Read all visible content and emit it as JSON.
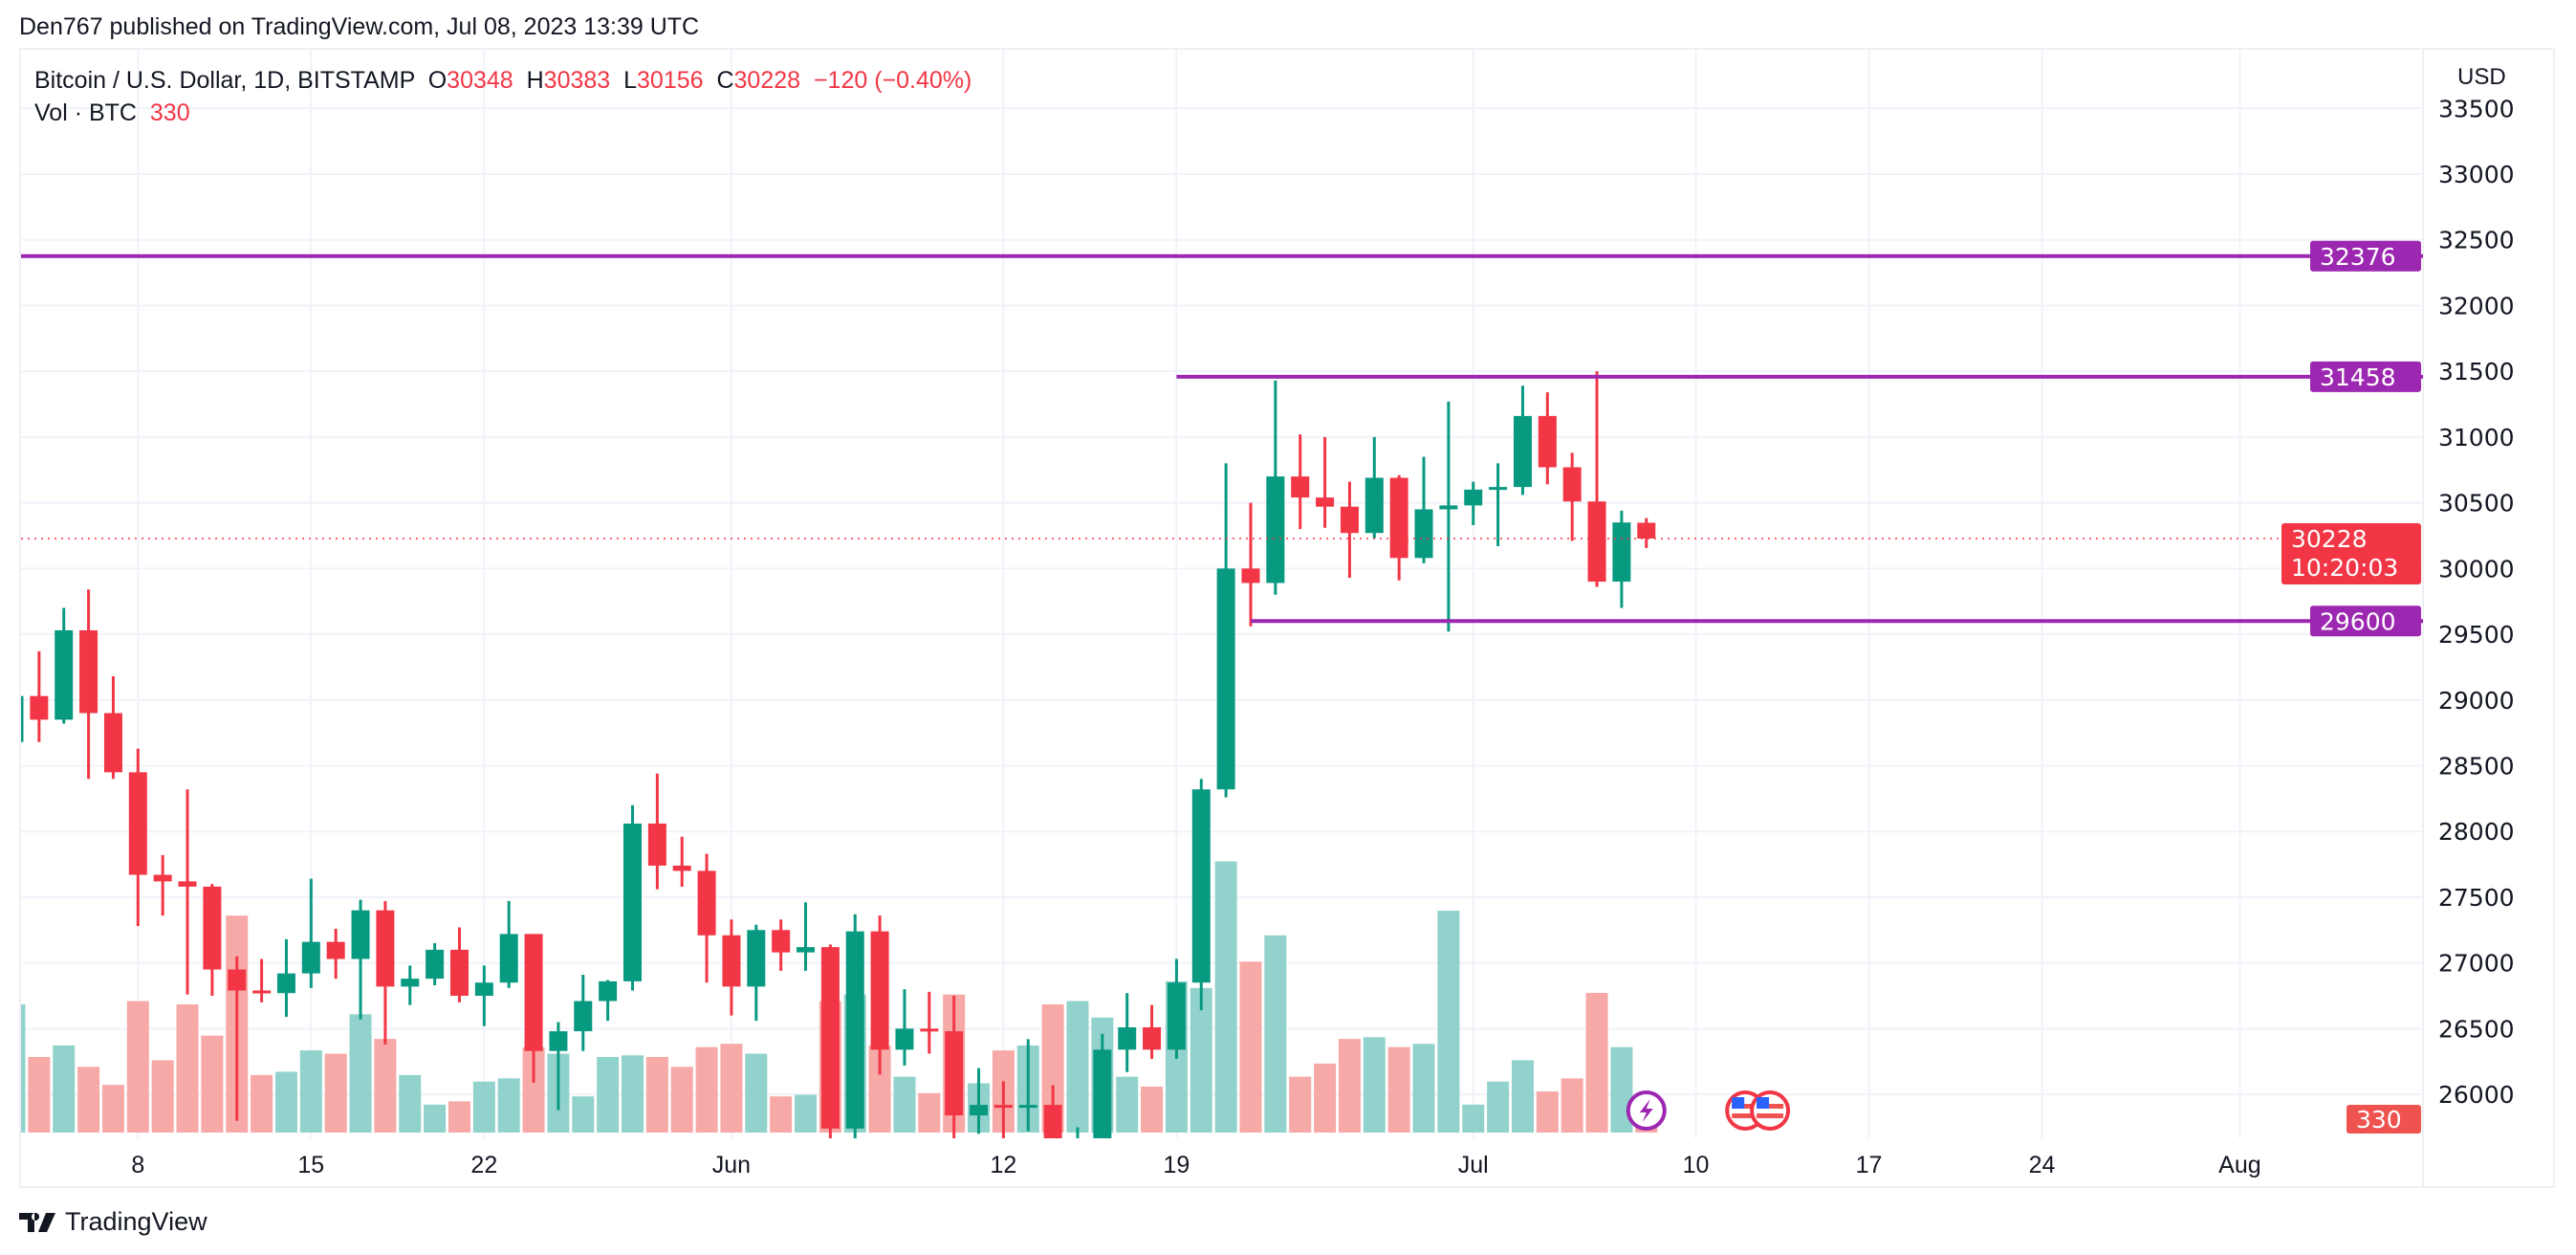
{
  "header": {
    "published": "Den767 published on TradingView.com, Jul 08, 2023 13:39 UTC"
  },
  "legend": {
    "symbol": "Bitcoin / U.S. Dollar, 1D, BITSTAMP",
    "o_label": "O",
    "o": "30348",
    "h_label": "H",
    "h": "30383",
    "l_label": "L",
    "l": "30156",
    "c_label": "C",
    "c": "30228",
    "change": "−120 (−0.40%)",
    "vol_label": "Vol · BTC",
    "vol": "330"
  },
  "footer": {
    "brand": "TradingView"
  },
  "colors": {
    "up": "#089981",
    "down": "#F23645",
    "up_volume": "#92D2CC",
    "down_volume": "#F7A9A7",
    "hline": "#9C27B0",
    "grid": "#F0F3FA"
  },
  "chart_data": {
    "type": "candlestick",
    "currency": "USD",
    "ylim": [
      25700,
      33700
    ],
    "grid": true,
    "y_ticks": [
      26000,
      26500,
      27000,
      27500,
      28000,
      28500,
      29000,
      29500,
      30000,
      30500,
      31000,
      31500,
      32000,
      32500,
      33000,
      33500
    ],
    "x_ticks": [
      {
        "date": "2023-05-08",
        "label": "8"
      },
      {
        "date": "2023-05-15",
        "label": "15"
      },
      {
        "date": "2023-05-22",
        "label": "22"
      },
      {
        "date": "2023-06-01",
        "label": "Jun"
      },
      {
        "date": "2023-06-12",
        "label": "12"
      },
      {
        "date": "2023-06-19",
        "label": "19"
      },
      {
        "date": "2023-07-01",
        "label": "Jul"
      },
      {
        "date": "2023-07-10",
        "label": "10"
      },
      {
        "date": "2023-07-17",
        "label": "17"
      },
      {
        "date": "2023-07-24",
        "label": "24"
      },
      {
        "date": "2023-08-01",
        "label": "Aug"
      }
    ],
    "start_date": "2023-05-03",
    "candles": [
      [
        28680,
        29260,
        28130,
        29030,
        3900
      ],
      [
        29030,
        29370,
        28680,
        28850,
        2300
      ],
      [
        28850,
        29700,
        28820,
        29530,
        2650
      ],
      [
        29530,
        29840,
        28400,
        28900,
        2000
      ],
      [
        28900,
        29180,
        28400,
        28450,
        1450
      ],
      [
        28450,
        28630,
        27280,
        27670,
        4000
      ],
      [
        27670,
        27820,
        27360,
        27620,
        2200
      ],
      [
        27620,
        28320,
        26760,
        27580,
        3900
      ],
      [
        27580,
        27600,
        26750,
        26950,
        2950
      ],
      [
        26950,
        27050,
        25800,
        26790,
        6600
      ],
      [
        26790,
        27030,
        26700,
        26770,
        1750
      ],
      [
        26770,
        27180,
        26590,
        26920,
        1850
      ],
      [
        26920,
        27640,
        26810,
        27160,
        2500
      ],
      [
        27160,
        27260,
        26880,
        27030,
        2400
      ],
      [
        27030,
        27480,
        26570,
        27400,
        3600
      ],
      [
        27400,
        27470,
        26380,
        26820,
        2850
      ],
      [
        26820,
        26980,
        26680,
        26880,
        1750
      ],
      [
        26880,
        27150,
        26830,
        27100,
        850
      ],
      [
        27100,
        27270,
        26700,
        26750,
        950
      ],
      [
        26750,
        26980,
        26520,
        26850,
        1550
      ],
      [
        26850,
        27470,
        26810,
        27220,
        1650
      ],
      [
        27220,
        27220,
        26090,
        26330,
        2600
      ],
      [
        26330,
        26550,
        25880,
        26480,
        2400
      ],
      [
        26480,
        26910,
        26330,
        26710,
        1100
      ],
      [
        26710,
        26870,
        26560,
        26860,
        2300
      ],
      [
        26860,
        28200,
        26790,
        28060,
        2350
      ],
      [
        28060,
        28440,
        27560,
        27740,
        2300
      ],
      [
        27740,
        27960,
        27580,
        27700,
        2000
      ],
      [
        27700,
        27830,
        26850,
        27210,
        2600
      ],
      [
        27210,
        27330,
        26600,
        26820,
        2700
      ],
      [
        26820,
        27290,
        26560,
        27250,
        2400
      ],
      [
        27250,
        27330,
        26940,
        27080,
        1100
      ],
      [
        27080,
        27460,
        26940,
        27120,
        1150
      ],
      [
        27120,
        27140,
        25400,
        25740,
        4000
      ],
      [
        25740,
        27370,
        25380,
        27240,
        4200
      ],
      [
        27240,
        27360,
        26150,
        26340,
        2650
      ],
      [
        26340,
        26800,
        26220,
        26500,
        1700
      ],
      [
        26500,
        26780,
        26310,
        26480,
        1200
      ],
      [
        26480,
        26750,
        25400,
        25840,
        4200
      ],
      [
        25840,
        26200,
        25700,
        25920,
        1500
      ],
      [
        25920,
        26100,
        25650,
        25900,
        2500
      ],
      [
        25900,
        26420,
        25720,
        25920,
        2650
      ],
      [
        25920,
        26070,
        24830,
        25120,
        3900
      ],
      [
        25120,
        25750,
        24780,
        25590,
        4000
      ],
      [
        25590,
        26460,
        25180,
        26340,
        3500
      ],
      [
        26340,
        26770,
        26170,
        26510,
        1700
      ],
      [
        26510,
        26680,
        26270,
        26340,
        1400
      ],
      [
        26340,
        27030,
        26270,
        26850,
        4600
      ],
      [
        26850,
        28400,
        26640,
        28320,
        4400
      ],
      [
        28320,
        30800,
        28260,
        30000,
        8250
      ],
      [
        30000,
        30500,
        29560,
        29890,
        5200
      ],
      [
        29890,
        31430,
        29800,
        30700,
        6000
      ],
      [
        30700,
        31020,
        30300,
        30540,
        1700
      ],
      [
        30540,
        31000,
        30310,
        30470,
        2100
      ],
      [
        30470,
        30660,
        29930,
        30270,
        2850
      ],
      [
        30270,
        31000,
        30230,
        30690,
        2900
      ],
      [
        30690,
        30710,
        29910,
        30080,
        2600
      ],
      [
        30080,
        30850,
        30040,
        30450,
        2700
      ],
      [
        30450,
        31270,
        29520,
        30480,
        6750
      ],
      [
        30480,
        30660,
        30330,
        30600,
        850
      ],
      [
        30600,
        30800,
        30170,
        30620,
        1550
      ],
      [
        30620,
        31390,
        30560,
        31160,
        2200
      ],
      [
        31160,
        31340,
        30640,
        30770,
        1250
      ],
      [
        30770,
        30880,
        30210,
        30510,
        1650
      ],
      [
        30510,
        31500,
        29860,
        29900,
        4250
      ],
      [
        29900,
        30440,
        29700,
        30350,
        2600
      ],
      [
        30348,
        30383,
        30156,
        30228,
        330
      ]
    ],
    "horizontal_lines": [
      {
        "price": 32376,
        "label": "32376",
        "from": null
      },
      {
        "price": 31458,
        "label": "31458",
        "from": "2023-06-19"
      },
      {
        "price": 29600,
        "label": "29600",
        "from": "2023-06-22"
      }
    ],
    "last_price": {
      "price": 30228,
      "label": "30228",
      "countdown": "10:20:03"
    },
    "last_volume": {
      "label": "330"
    },
    "events": [
      {
        "date": "2023-07-08",
        "icon": "lightning-icon"
      },
      {
        "date": "2023-07-12",
        "icon": "us-flag-icon"
      },
      {
        "date": "2023-07-13",
        "icon": "us-flag-icon"
      }
    ]
  }
}
